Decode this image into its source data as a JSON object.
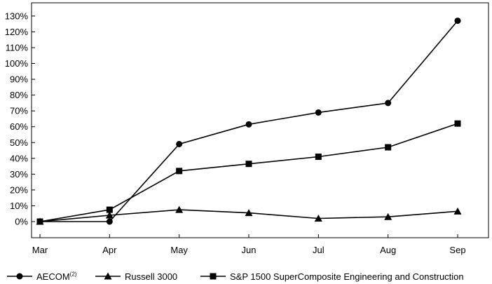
{
  "chart_data": {
    "type": "line",
    "title": "",
    "xlabel": "",
    "ylabel": "",
    "categories": [
      "Mar",
      "Apr",
      "May",
      "Jun",
      "Jul",
      "Aug",
      "Sep"
    ],
    "ylim": [
      -10,
      135
    ],
    "yticks": [
      0,
      10,
      20,
      30,
      40,
      50,
      60,
      70,
      80,
      90,
      100,
      110,
      120,
      130
    ],
    "ytick_labels": [
      "0%",
      "10%",
      "20%",
      "30%",
      "40%",
      "50%",
      "60%",
      "70%",
      "80%",
      "90%",
      "100%",
      "110%",
      "120%",
      "130%"
    ],
    "grid": false,
    "legend_position": "bottom",
    "series": [
      {
        "name": "AECOM",
        "name_superscript": "(2)",
        "marker": "circle",
        "values": [
          0,
          0,
          49,
          61.5,
          69,
          75,
          127
        ]
      },
      {
        "name": "Russell 3000",
        "marker": "triangle",
        "values": [
          0,
          4,
          7.5,
          5.5,
          2,
          3,
          6.5
        ]
      },
      {
        "name": "S&P 1500 SuperComposite Engineering and Construction",
        "marker": "square",
        "values": [
          0,
          7.5,
          32,
          36.5,
          41,
          47,
          62
        ]
      }
    ],
    "colors": {
      "line": "#000000",
      "marker": "#000000"
    }
  }
}
